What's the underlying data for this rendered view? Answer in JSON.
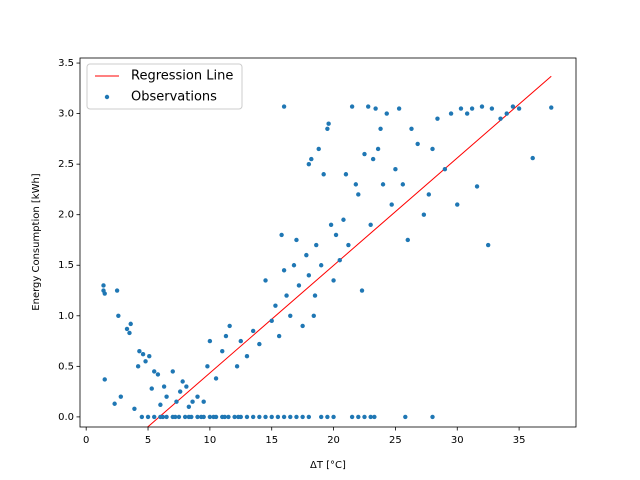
{
  "chart_data": {
    "type": "scatter",
    "x_label": "ΔT [°C]",
    "y_label": "Energy Consumption [kWh]",
    "xlim": [
      -0.5,
      39.6
    ],
    "ylim": [
      -0.1,
      3.55
    ],
    "xticks": [
      0,
      5,
      10,
      15,
      20,
      25,
      30,
      35
    ],
    "yticks": [
      {
        "value": 0,
        "label": "0.0"
      },
      0.5,
      {
        "value": 1,
        "label": "1.0"
      },
      1.5,
      {
        "value": 2,
        "label": "2.0"
      },
      2.5,
      {
        "value": 3,
        "label": "3.0"
      },
      3.5
    ],
    "legend": "upper left",
    "series": [
      {
        "name": "Regression Line",
        "type": "line",
        "color": "#ff0000",
        "x": [
          1.4,
          37.6
        ],
        "y": [
          -0.48,
          3.37
        ]
      },
      {
        "name": "Observations",
        "type": "scatter",
        "color": "#1f77b4",
        "x": [
          4.5,
          5,
          5.5,
          6,
          6.2,
          6.5,
          7,
          7.2,
          7.5,
          8,
          8.3,
          8.5,
          9,
          9.3,
          9.5,
          10,
          10.3,
          10.5,
          11,
          11.2,
          11.5,
          12,
          12.3,
          12.5,
          13,
          13.5,
          14,
          14.5,
          15,
          15.5,
          16,
          16.5,
          17,
          17.5,
          18,
          19,
          19.5,
          20,
          21.5,
          22,
          22.5,
          23,
          23.3,
          25.8,
          28,
          1.4,
          1.4,
          1.5,
          1.5,
          2.3,
          2.5,
          2.6,
          2.8,
          3.3,
          3.5,
          3.6,
          3.9,
          4.2,
          4.3,
          4.6,
          4.8,
          5.1,
          5.3,
          5.5,
          5.8,
          6,
          6.3,
          6.5,
          7,
          7.3,
          7.6,
          7.8,
          8.1,
          8.3,
          8.6,
          9,
          9.5,
          9.8,
          10,
          10.5,
          11,
          11.3,
          11.6,
          12.2,
          12.5,
          13,
          13.5,
          14,
          14.5,
          15,
          15.3,
          15.6,
          15.8,
          16,
          16.2,
          16.5,
          16.8,
          17,
          17.2,
          17.5,
          17.8,
          18,
          18,
          18.2,
          18.4,
          18.5,
          18.6,
          18.8,
          19,
          19.2,
          19.5,
          19.6,
          19.8,
          20,
          20.2,
          20.5,
          20.8,
          21,
          21.2,
          21.5,
          21.8,
          22,
          22.3,
          22.5,
          22.8,
          23,
          23.2,
          23.4,
          23.6,
          23.8,
          24,
          24.3,
          24.7,
          25,
          25.3,
          25.6,
          26,
          26.3,
          26.8,
          27.3,
          27.7,
          28,
          28.4,
          29,
          29.5,
          30,
          30.3,
          30.8,
          31.2,
          31.6,
          32,
          32.5,
          32.8,
          33.5,
          34,
          34.5,
          35,
          36.1,
          37.6,
          16
        ],
        "y": [
          0,
          0,
          0,
          0,
          0,
          0,
          0,
          0,
          0,
          0,
          0,
          0,
          0,
          0,
          0,
          0,
          0,
          0,
          0,
          0,
          0,
          0,
          0,
          0,
          0,
          0,
          0,
          0,
          0,
          0,
          0,
          0,
          0,
          0,
          0,
          0,
          0,
          0,
          0,
          0,
          0,
          0,
          0,
          0,
          0,
          1.3,
          1.25,
          1.22,
          0.37,
          0.13,
          1.25,
          1.0,
          0.2,
          0.87,
          0.83,
          0.92,
          0.08,
          0.5,
          0.65,
          0.62,
          0.55,
          0.6,
          0.28,
          0.45,
          0.42,
          0.12,
          0.3,
          0.2,
          0.45,
          0.15,
          0.25,
          0.35,
          0.3,
          0.1,
          0.15,
          0.2,
          0.15,
          0.5,
          0.75,
          0.38,
          0.65,
          0.8,
          0.9,
          0.5,
          0.75,
          0.6,
          0.85,
          0.72,
          1.35,
          0.95,
          1.1,
          0.8,
          1.8,
          1.45,
          1.2,
          1.0,
          1.5,
          1.75,
          1.3,
          0.9,
          1.6,
          1.4,
          2.5,
          2.55,
          1.0,
          1.2,
          1.7,
          2.65,
          1.5,
          2.4,
          2.85,
          2.9,
          1.9,
          1.35,
          1.8,
          1.55,
          1.95,
          2.4,
          1.7,
          3.07,
          2.3,
          2.2,
          1.25,
          2.6,
          3.07,
          1.9,
          2.55,
          3.05,
          2.65,
          2.85,
          2.3,
          3.0,
          2.1,
          2.45,
          3.05,
          2.3,
          1.75,
          2.85,
          2.7,
          2.0,
          2.2,
          2.65,
          2.95,
          2.45,
          3.0,
          2.1,
          3.05,
          3.0,
          3.05,
          2.28,
          3.07,
          1.7,
          3.05,
          2.95,
          3.0,
          3.07,
          3.05,
          2.56,
          3.06,
          3.07
        ]
      }
    ]
  }
}
